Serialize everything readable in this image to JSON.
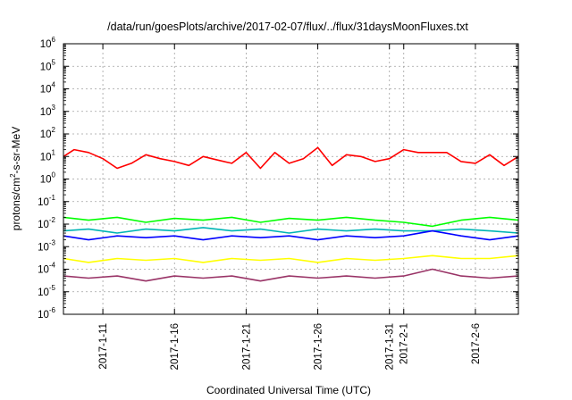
{
  "chart_data": {
    "type": "line",
    "title": "/data/run/goesPlots/archive/2017-02-07/flux/../flux/31daysMoonFluxes.txt",
    "xlabel": "Coordinated Universal Time (UTC)",
    "ylabel": {
      "prefix": "protons/cm",
      "exp": "2",
      "suffix": "-s-sr-MeV"
    },
    "y_scale": "log",
    "ylim": [
      1e-06,
      1000000.0
    ],
    "xlim": [
      "2017-01-08 06:00",
      "2017-02-09 00:00"
    ],
    "grid": true,
    "legend": "none",
    "y_ticks": [
      {
        "base": "10",
        "exp": "-6"
      },
      {
        "base": "10",
        "exp": "-5"
      },
      {
        "base": "10",
        "exp": "-4"
      },
      {
        "base": "10",
        "exp": "-3"
      },
      {
        "base": "10",
        "exp": "-2"
      },
      {
        "base": "10",
        "exp": "-1"
      },
      {
        "base": "10",
        "exp": "0"
      },
      {
        "base": "10",
        "exp": "1"
      },
      {
        "base": "10",
        "exp": "2"
      },
      {
        "base": "10",
        "exp": "3"
      },
      {
        "base": "10",
        "exp": "4"
      },
      {
        "base": "10",
        "exp": "5"
      },
      {
        "base": "10",
        "exp": "6"
      }
    ],
    "x_ticks": [
      {
        "label": "2017-1-11",
        "date": "2017-01-11"
      },
      {
        "label": "2017-1-16",
        "date": "2017-01-16"
      },
      {
        "label": "2017-1-21",
        "date": "2017-01-21"
      },
      {
        "label": "2017-1-26",
        "date": "2017-01-26"
      },
      {
        "label": "2017-1-31",
        "date": "2017-01-31"
      },
      {
        "label": "2017-2-1",
        "date": "2017-02-01"
      },
      {
        "label": "2017-2-6",
        "date": "2017-02-06"
      }
    ],
    "series": [
      {
        "color": "#ff0000",
        "x": [
          "2017-01-08 06:00",
          "2017-01-09",
          "2017-01-10",
          "2017-01-11",
          "2017-01-12",
          "2017-01-13",
          "2017-01-14",
          "2017-01-15",
          "2017-01-16",
          "2017-01-17",
          "2017-01-18",
          "2017-01-19",
          "2017-01-20",
          "2017-01-21",
          "2017-01-22",
          "2017-01-23",
          "2017-01-24",
          "2017-01-25",
          "2017-01-26",
          "2017-01-27",
          "2017-01-28",
          "2017-01-29",
          "2017-01-30",
          "2017-01-31",
          "2017-02-01",
          "2017-02-02",
          "2017-02-03",
          "2017-02-04",
          "2017-02-05",
          "2017-02-06",
          "2017-02-07",
          "2017-02-08",
          "2017-02-09"
        ],
        "values": [
          10,
          20,
          15,
          8,
          3,
          5,
          12,
          8,
          6,
          4,
          10,
          7,
          5,
          15,
          3,
          15,
          5,
          8,
          25,
          4,
          12,
          10,
          6,
          8,
          20,
          15,
          15,
          15,
          6,
          5,
          12,
          4,
          10
        ]
      },
      {
        "color": "#00ff00",
        "x": [
          "2017-01-08 06:00",
          "2017-01-10",
          "2017-01-12",
          "2017-01-14",
          "2017-01-16",
          "2017-01-18",
          "2017-01-20",
          "2017-01-22",
          "2017-01-24",
          "2017-01-26",
          "2017-01-28",
          "2017-01-30",
          "2017-02-01",
          "2017-02-03",
          "2017-02-05",
          "2017-02-07",
          "2017-02-09"
        ],
        "values": [
          0.02,
          0.015,
          0.02,
          0.012,
          0.018,
          0.015,
          0.02,
          0.012,
          0.018,
          0.015,
          0.02,
          0.015,
          0.012,
          0.008,
          0.015,
          0.02,
          0.015
        ]
      },
      {
        "color": "#00b4b4",
        "x": [
          "2017-01-08 06:00",
          "2017-01-10",
          "2017-01-12",
          "2017-01-14",
          "2017-01-16",
          "2017-01-18",
          "2017-01-20",
          "2017-01-22",
          "2017-01-24",
          "2017-01-26",
          "2017-01-28",
          "2017-01-30",
          "2017-02-01",
          "2017-02-03",
          "2017-02-05",
          "2017-02-07",
          "2017-02-09"
        ],
        "values": [
          0.005,
          0.006,
          0.004,
          0.006,
          0.005,
          0.007,
          0.005,
          0.006,
          0.004,
          0.006,
          0.005,
          0.006,
          0.005,
          0.005,
          0.006,
          0.005,
          0.004
        ]
      },
      {
        "color": "#0000ff",
        "x": [
          "2017-01-08 06:00",
          "2017-01-10",
          "2017-01-12",
          "2017-01-14",
          "2017-01-16",
          "2017-01-18",
          "2017-01-20",
          "2017-01-22",
          "2017-01-24",
          "2017-01-26",
          "2017-01-28",
          "2017-01-30",
          "2017-02-01",
          "2017-02-03",
          "2017-02-05",
          "2017-02-07",
          "2017-02-09"
        ],
        "values": [
          0.003,
          0.002,
          0.003,
          0.0025,
          0.003,
          0.002,
          0.003,
          0.0025,
          0.003,
          0.002,
          0.003,
          0.0025,
          0.003,
          0.005,
          0.003,
          0.002,
          0.003
        ]
      },
      {
        "color": "#ffff00",
        "x": [
          "2017-01-08 06:00",
          "2017-01-10",
          "2017-01-12",
          "2017-01-14",
          "2017-01-16",
          "2017-01-18",
          "2017-01-20",
          "2017-01-22",
          "2017-01-24",
          "2017-01-26",
          "2017-01-28",
          "2017-01-30",
          "2017-02-01",
          "2017-02-03",
          "2017-02-05",
          "2017-02-07",
          "2017-02-09"
        ],
        "values": [
          0.0003,
          0.0002,
          0.0003,
          0.00025,
          0.0003,
          0.0002,
          0.0003,
          0.00025,
          0.0003,
          0.0002,
          0.0003,
          0.00025,
          0.0003,
          0.0004,
          0.0003,
          0.0003,
          0.0004
        ]
      },
      {
        "color": "#993366",
        "x": [
          "2017-01-08 06:00",
          "2017-01-10",
          "2017-01-12",
          "2017-01-14",
          "2017-01-16",
          "2017-01-18",
          "2017-01-20",
          "2017-01-22",
          "2017-01-24",
          "2017-01-26",
          "2017-01-28",
          "2017-01-30",
          "2017-02-01",
          "2017-02-03",
          "2017-02-05",
          "2017-02-07",
          "2017-02-09"
        ],
        "values": [
          5e-05,
          4e-05,
          5e-05,
          3e-05,
          5e-05,
          4e-05,
          5e-05,
          3e-05,
          5e-05,
          4e-05,
          5e-05,
          4e-05,
          5e-05,
          0.0001,
          5e-05,
          4e-05,
          5e-05
        ]
      }
    ]
  }
}
